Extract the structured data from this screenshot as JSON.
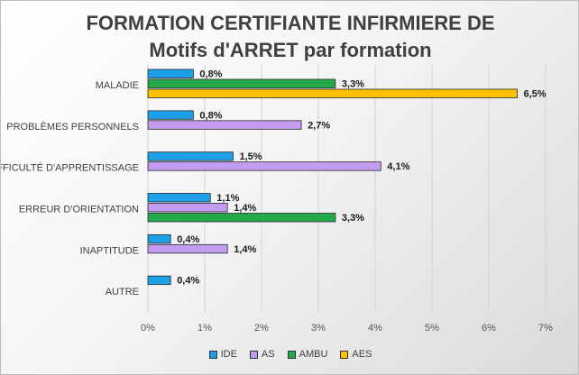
{
  "chart_data": {
    "type": "bar",
    "orientation": "horizontal",
    "title_lines": [
      "FORMATION CERTIFIANTE INFIRMIERE DE",
      "Motifs d'ARRET par formation"
    ],
    "categories": [
      "MALADIE",
      "PROBLÈMES PERSONNELS",
      "DIFFICULTÉ D'APPRENTISSAGE",
      "ERREUR D'ORIENTATION",
      "INAPTITUDE",
      "AUTRE"
    ],
    "series": [
      {
        "name": "IDE",
        "color": "#1ea0e8",
        "values": [
          0.8,
          0.8,
          1.5,
          1.1,
          0.4,
          0.4
        ],
        "labels": [
          "0,8%",
          "0,8%",
          "1,5%",
          "1,1%",
          "0,4%",
          "0,4%"
        ]
      },
      {
        "name": "AS",
        "color": "#c39bf0",
        "values": [
          null,
          2.7,
          4.1,
          1.4,
          1.4,
          null
        ],
        "labels": [
          "",
          "2,7%",
          "4,1%",
          "1,4%",
          "1,4%",
          ""
        ]
      },
      {
        "name": "AMBU",
        "color": "#23a84a",
        "values": [
          3.3,
          null,
          null,
          3.3,
          null,
          null
        ],
        "labels": [
          "3,3%",
          "",
          "",
          "3,3%",
          "",
          ""
        ]
      },
      {
        "name": "AES",
        "color": "#ffc000",
        "values": [
          6.5,
          null,
          null,
          null,
          null,
          null
        ],
        "labels": [
          "6,5%",
          "",
          "",
          "",
          "",
          ""
        ]
      }
    ],
    "x_ticks": [
      "0%",
      "1%",
      "2%",
      "3%",
      "4%",
      "5%",
      "6%",
      "7%"
    ],
    "xlim": [
      0,
      7
    ],
    "grid": "vertical",
    "legend_position": "bottom"
  }
}
